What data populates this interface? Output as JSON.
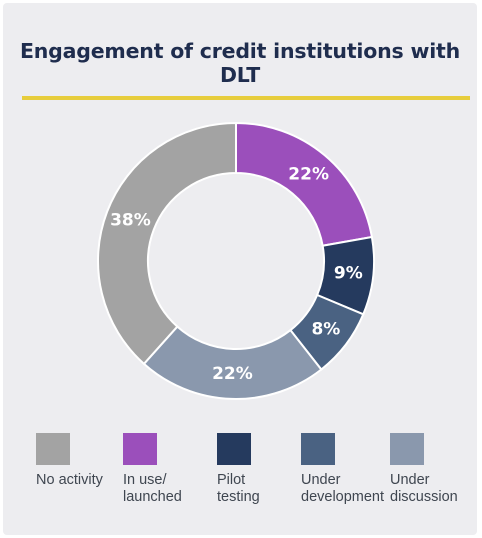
{
  "title": "Engagement of credit institutions with DLT",
  "chart_data": {
    "type": "pie",
    "donut": true,
    "title": "Engagement of credit institutions with DLT",
    "slices": [
      {
        "label": "In use/\nlaunched",
        "value": 22,
        "value_label": "22%",
        "color": "#9b4fbb"
      },
      {
        "label": "Pilot\ntesting",
        "value": 9,
        "value_label": "9%",
        "color": "#253a5e"
      },
      {
        "label": "Under\ndevelopment",
        "value": 8,
        "value_label": "8%",
        "color": "#4a6282"
      },
      {
        "label": "Under\ndiscussion",
        "value": 22,
        "value_label": "22%",
        "color": "#8a98ad"
      },
      {
        "label": "No activity",
        "value": 38,
        "value_label": "38%",
        "color": "#a3a3a3"
      }
    ],
    "legend_order": [
      "No activity",
      "In use/\nlaunched",
      "Pilot\ntesting",
      "Under\ndevelopment",
      "Under\ndiscussion"
    ],
    "legend_position": "bottom"
  }
}
